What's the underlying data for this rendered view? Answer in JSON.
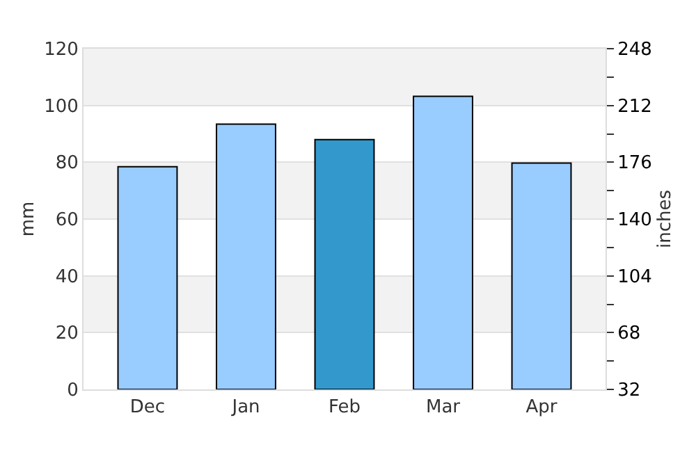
{
  "chart_data": {
    "type": "bar",
    "categories": [
      "Dec",
      "Jan",
      "Feb",
      "Mar",
      "Apr"
    ],
    "values": [
      78.4,
      93.4,
      88,
      103.2,
      79.7
    ],
    "colors": [
      "#99ccff",
      "#99ccff",
      "#3399cc",
      "#99ccff",
      "#99ccff"
    ],
    "ylabel": "mm",
    "y2label": "inches",
    "ylim": [
      0,
      120
    ],
    "yticks": [
      0,
      20,
      40,
      60,
      80,
      100,
      120
    ],
    "y2lim": [
      32,
      248
    ],
    "y2ticks": [
      32,
      {
        "value": 50,
        "label": null
      },
      68,
      {
        "value": 86,
        "label": null
      },
      104,
      {
        "value": 122,
        "label": null
      },
      140,
      {
        "value": 158,
        "label": null
      },
      176,
      {
        "value": 194,
        "label": null
      },
      212,
      {
        "value": 230,
        "label": null
      },
      248
    ],
    "bands": [
      {
        "axis": "y",
        "from": 20,
        "to": 40,
        "label": null,
        "color": "#f2f2f2"
      },
      {
        "axis": "y",
        "from": 60,
        "to": 80,
        "label": null,
        "color": "#f2f2f2"
      },
      {
        "axis": "y",
        "from": 100,
        "to": 120,
        "label": null,
        "color": "#f2f2f2"
      }
    ],
    "grid": "y"
  }
}
